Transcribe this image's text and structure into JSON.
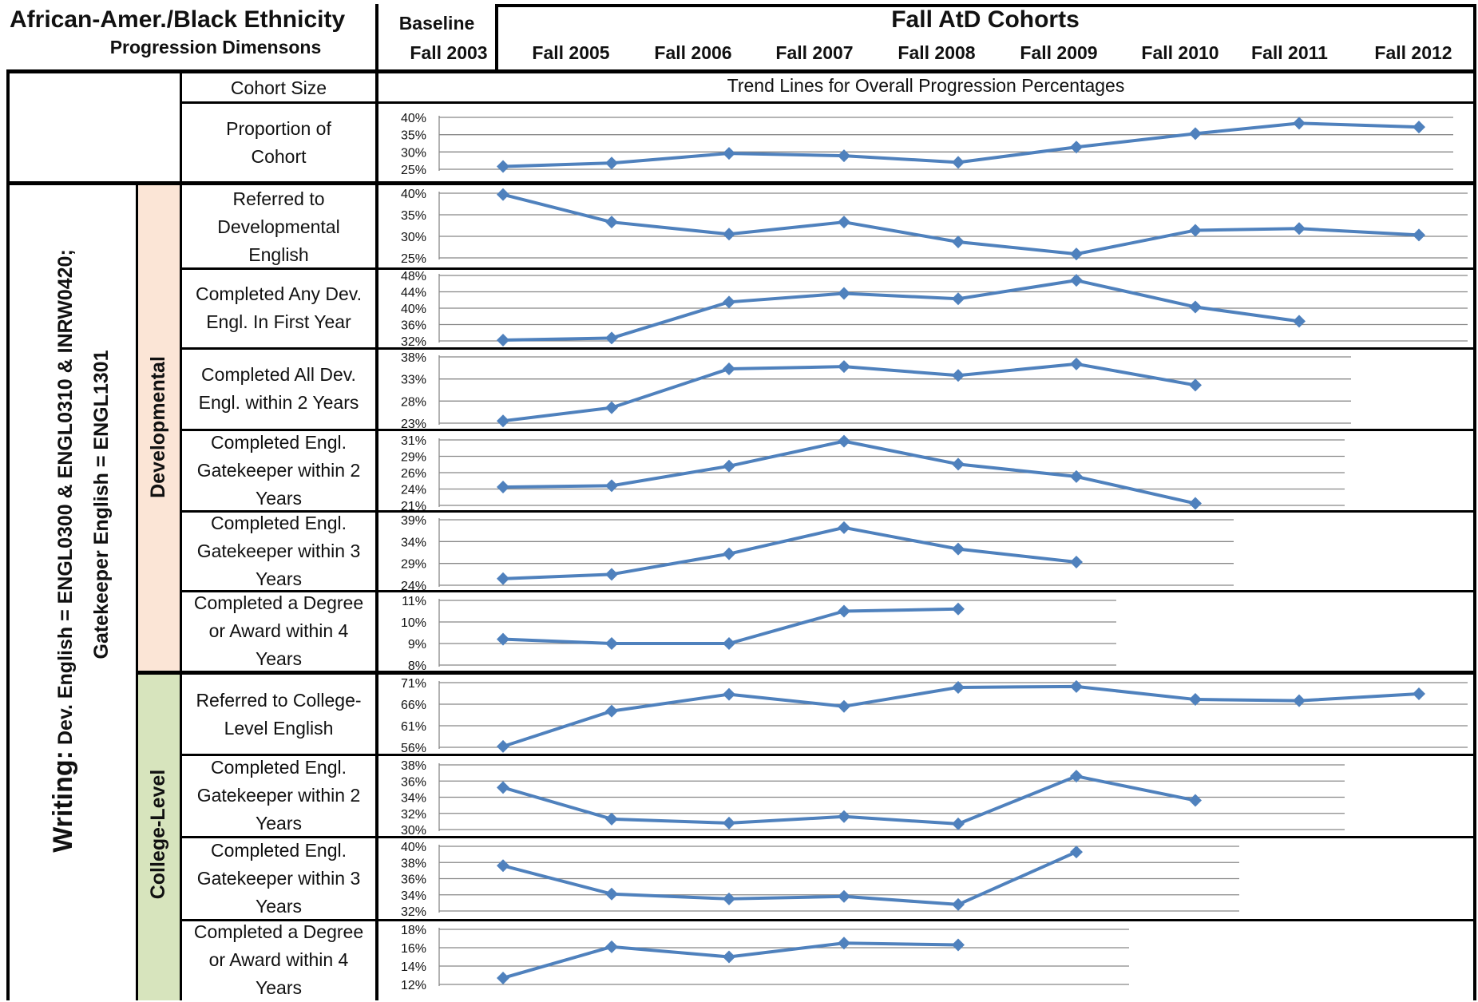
{
  "header": {
    "title": "African-Amer./Black Ethnicity",
    "subtitle": "Progression Dimensons",
    "baseline_label": "Baseline",
    "cohorts_title": "Fall AtD Cohorts",
    "cohort_labels": [
      "Fall 2003",
      "Fall 2005",
      "Fall 2006",
      "Fall 2007",
      "Fall 2008",
      "Fall 2009",
      "Fall 2010",
      "Fall 2011",
      "Fall 2012"
    ]
  },
  "top_rows": {
    "cohort_size_label": "Cohort Size",
    "trend_caption": "Trend Lines for Overall Progression Percentages",
    "proportion_label": "Proportion of Cohort"
  },
  "side": {
    "writing_label": "Writing:",
    "writing_detail": "Dev. English =  ENGL0300 & ENGL0310 & INRW0420;",
    "writing_detail2": "Gatekeeper English = ENGL1301",
    "developmental_label": "Developmental",
    "college_label": "College-Level"
  },
  "colors": {
    "line": "#4f81bd",
    "developmental_band": "#fbe5d6",
    "college_band": "#d7e4bd",
    "grid": "#888888"
  },
  "chart_data": [
    {
      "type": "line",
      "label": "Proportion of Cohort",
      "x": [
        "Fall 2003",
        "Fall 2005",
        "Fall 2006",
        "Fall 2007",
        "Fall 2008",
        "Fall 2009",
        "Fall 2010",
        "Fall 2011",
        "Fall 2012"
      ],
      "values": [
        25.8,
        26.8,
        29.6,
        28.9,
        27.0,
        31.4,
        35.3,
        38.3,
        37.2
      ],
      "ylim": [
        25,
        40
      ],
      "ticks": [
        "25%",
        "30%",
        "35%",
        "40%"
      ],
      "ticks_v": [
        25,
        30,
        35,
        40
      ]
    },
    {
      "type": "line",
      "label": "Referred to Developmental English",
      "x": [
        "Fall 2003",
        "Fall 2005",
        "Fall 2006",
        "Fall 2007",
        "Fall 2008",
        "Fall 2009",
        "Fall 2010",
        "Fall 2011",
        "Fall 2012"
      ],
      "values": [
        39.7,
        33.3,
        30.5,
        33.3,
        28.7,
        25.9,
        31.4,
        31.8,
        30.3
      ],
      "ylim": [
        25,
        40
      ],
      "ticks": [
        "25%",
        "30%",
        "35%",
        "40%"
      ],
      "ticks_v": [
        25,
        30,
        35,
        40
      ]
    },
    {
      "type": "line",
      "label": "Completed Any Dev. Engl. In First Year",
      "x": [
        "Fall 2003",
        "Fall 2005",
        "Fall 2006",
        "Fall 2007",
        "Fall 2008",
        "Fall 2009",
        "Fall 2010",
        "Fall 2011"
      ],
      "values": [
        32.2,
        32.7,
        41.5,
        43.6,
        42.3,
        46.8,
        40.3,
        36.8
      ],
      "ylim": [
        32,
        48
      ],
      "ticks": [
        "32%",
        "36%",
        "40%",
        "44%",
        "48%"
      ],
      "ticks_v": [
        32,
        36,
        40,
        44,
        48
      ]
    },
    {
      "type": "line",
      "label": "Completed All Dev. Engl. within 2 Years",
      "x": [
        "Fall 2003",
        "Fall 2005",
        "Fall 2006",
        "Fall 2007",
        "Fall 2008",
        "Fall 2009",
        "Fall 2010"
      ],
      "values": [
        23.5,
        26.5,
        35.3,
        35.8,
        33.8,
        36.4,
        31.6
      ],
      "ylim": [
        23,
        38
      ],
      "ticks": [
        "23%",
        "28%",
        "33%",
        "38%"
      ],
      "ticks_v": [
        23,
        28,
        33,
        38
      ]
    },
    {
      "type": "line",
      "label": "Completed Engl. Gatekeeper within 2 Years",
      "x": [
        "Fall 2003",
        "Fall 2005",
        "Fall 2006",
        "Fall 2007",
        "Fall 2008",
        "Fall 2009",
        "Fall 2010"
      ],
      "values": [
        23.8,
        24.0,
        27.0,
        30.8,
        27.3,
        25.4,
        21.3
      ],
      "ylim": [
        21,
        31
      ],
      "ticks": [
        "21%",
        "24%",
        "26%",
        "29%",
        "31%"
      ],
      "ticks_v": [
        21,
        23.5,
        26,
        28.5,
        31
      ]
    },
    {
      "type": "line",
      "label": "Completed Engl. Gatekeeper within 3 Years",
      "x": [
        "Fall 2003",
        "Fall 2005",
        "Fall 2006",
        "Fall 2007",
        "Fall 2008",
        "Fall 2009"
      ],
      "values": [
        25.5,
        26.5,
        31.2,
        37.2,
        32.3,
        29.3
      ],
      "ylim": [
        24,
        39
      ],
      "ticks": [
        "24%",
        "29%",
        "34%",
        "39%"
      ],
      "ticks_v": [
        24,
        29,
        34,
        39
      ]
    },
    {
      "type": "line",
      "label": "Completed a Degree or Award within 4 Years",
      "x": [
        "Fall 2003",
        "Fall 2005",
        "Fall 2006",
        "Fall 2007",
        "Fall 2008"
      ],
      "values": [
        9.2,
        9.0,
        9.0,
        10.5,
        10.6
      ],
      "ylim": [
        8,
        11
      ],
      "ticks": [
        "8%",
        "9%",
        "10%",
        "11%"
      ],
      "ticks_v": [
        8,
        9,
        10,
        11
      ]
    },
    {
      "type": "line",
      "label": "Referred to College-Level English",
      "x": [
        "Fall 2003",
        "Fall 2005",
        "Fall 2006",
        "Fall 2007",
        "Fall 2008",
        "Fall 2009",
        "Fall 2010",
        "Fall 2011",
        "Fall 2012"
      ],
      "values": [
        56.2,
        64.4,
        68.3,
        65.5,
        69.9,
        70.1,
        67.1,
        66.8,
        68.4
      ],
      "ylim": [
        56,
        71
      ],
      "ticks": [
        "56%",
        "61%",
        "66%",
        "71%"
      ],
      "ticks_v": [
        56,
        61,
        66,
        71
      ]
    },
    {
      "type": "line",
      "label": "Completed Engl. Gatekeeper within 2 Years",
      "x": [
        "Fall 2003",
        "Fall 2005",
        "Fall 2006",
        "Fall 2007",
        "Fall 2008",
        "Fall 2009",
        "Fall 2010"
      ],
      "values": [
        35.2,
        31.3,
        30.8,
        31.6,
        30.7,
        36.6,
        33.6
      ],
      "ylim": [
        30,
        38
      ],
      "ticks": [
        "30%",
        "32%",
        "34%",
        "36%",
        "38%"
      ],
      "ticks_v": [
        30,
        32,
        34,
        36,
        38
      ]
    },
    {
      "type": "line",
      "label": "Completed Engl. Gatekeeper within 3 Years",
      "x": [
        "Fall 2003",
        "Fall 2005",
        "Fall 2006",
        "Fall 2007",
        "Fall 2008",
        "Fall 2009"
      ],
      "values": [
        37.6,
        34.1,
        33.5,
        33.8,
        32.8,
        39.3
      ],
      "ylim": [
        32,
        40
      ],
      "ticks": [
        "32%",
        "34%",
        "36%",
        "38%",
        "40%"
      ],
      "ticks_v": [
        32,
        34,
        36,
        38,
        40
      ]
    },
    {
      "type": "line",
      "label": "Completed a Degree or Award within 4 Years",
      "x": [
        "Fall 2003",
        "Fall 2005",
        "Fall 2006",
        "Fall 2007",
        "Fall 2008"
      ],
      "values": [
        12.7,
        16.1,
        15.0,
        16.5,
        16.3
      ],
      "ylim": [
        12,
        18
      ],
      "ticks": [
        "12%",
        "14%",
        "16%",
        "18%"
      ],
      "ticks_v": [
        12,
        14,
        16,
        18
      ]
    }
  ],
  "row_labels": [
    [
      "Referred to",
      "Developmental",
      "English"
    ],
    [
      "Completed Any Dev.",
      "Engl. In First Year"
    ],
    [
      "Completed All Dev.",
      "Engl. within 2 Years"
    ],
    [
      "Completed Engl.",
      "Gatekeeper within 2",
      "Years"
    ],
    [
      "Completed Engl.",
      "Gatekeeper within 3",
      "Years"
    ],
    [
      "Completed a Degree",
      "or Award within 4",
      "Years"
    ],
    [
      "Referred to College-",
      "Level English"
    ],
    [
      "Completed Engl.",
      "Gatekeeper within 2",
      "Years"
    ],
    [
      "Completed Engl.",
      "Gatekeeper within 3",
      "Years"
    ],
    [
      "Completed a Degree",
      "or Award within 4",
      "Years"
    ]
  ],
  "proportion_label_lines": [
    "Proportion of",
    "Cohort"
  ]
}
